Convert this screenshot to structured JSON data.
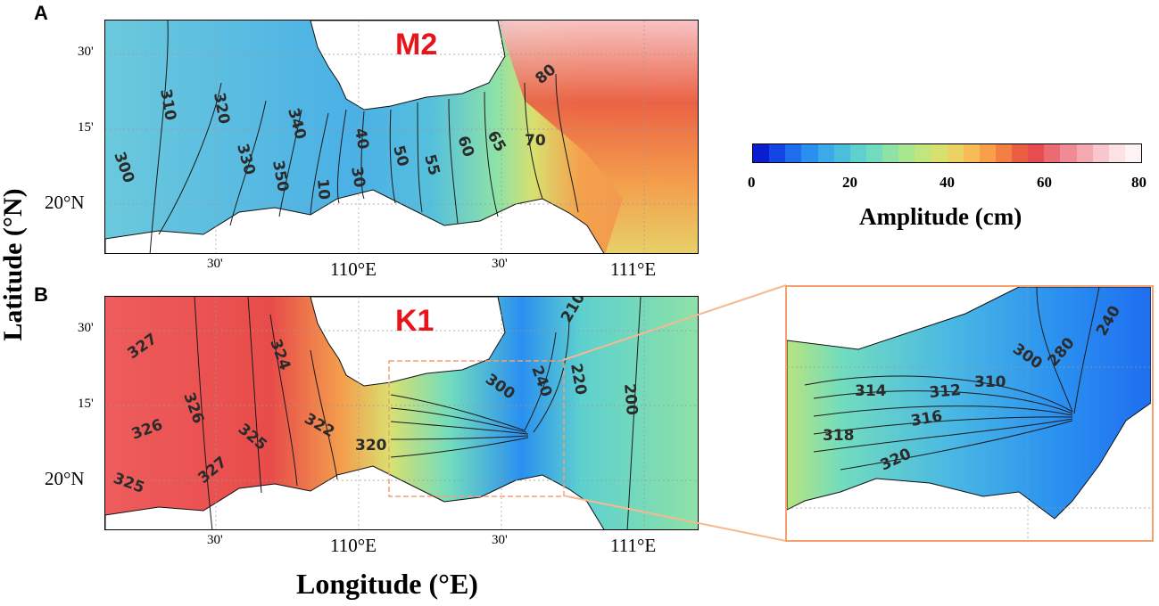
{
  "panels": [
    {
      "letter": "A",
      "constituent": "M2",
      "contour_labels": [
        "310",
        "320",
        "340",
        "300",
        "330",
        "350",
        "10",
        "40",
        "30",
        "50",
        "55",
        "60",
        "65",
        "70",
        "80"
      ]
    },
    {
      "letter": "B",
      "constituent": "K1",
      "contour_labels": [
        "327",
        "324",
        "326",
        "325",
        "322",
        "320",
        "326",
        "327",
        "325",
        "300",
        "240",
        "220",
        "210",
        "200"
      ],
      "inset_contour_labels": [
        "300",
        "240",
        "280",
        "314",
        "312",
        "310",
        "316",
        "318",
        "320"
      ]
    }
  ],
  "axes": {
    "x_title": "Longitude (°E)",
    "y_title": "Latitude (°N)",
    "x_ticks": [
      "30'",
      "110°E",
      "30'",
      "111°E"
    ],
    "y_ticks": [
      "30'",
      "15'",
      "20°N"
    ]
  },
  "colorbar": {
    "title": "Amplitude (cm)",
    "min": 0,
    "max": 80,
    "tick_labels": [
      "0",
      "20",
      "40",
      "60",
      "80"
    ],
    "colors": [
      "#0a1ed0",
      "#1446e6",
      "#1f6ef0",
      "#2a90f0",
      "#3aaae8",
      "#4bbedd",
      "#5dd0cf",
      "#72dcbe",
      "#8ee2a6",
      "#a8e690",
      "#c2e67e",
      "#d8e070",
      "#ecd262",
      "#f7bc55",
      "#fa9e4a",
      "#f47f42",
      "#ea5e44",
      "#e84c50",
      "#ec6a72",
      "#f08a94",
      "#f4a8b0",
      "#f8c6cc",
      "#fce2e4",
      "#fff2f2"
    ],
    "color_stops": {
      "low": "#0a1ed0",
      "mid": "#c2e67e",
      "high": "#fff2f2"
    }
  },
  "chart_data": {
    "type": "heatmap",
    "title": "",
    "xlabel": "Longitude (°E)",
    "ylabel": "Latitude (°N)",
    "x_range": [
      109.2,
      111.4
    ],
    "y_range": [
      19.83,
      20.58
    ],
    "colorbar": {
      "label": "Amplitude (cm)",
      "range": [
        0,
        80
      ]
    },
    "panels": [
      {
        "name": "M2",
        "phase_contour_labels": [
          310,
          320,
          340,
          300,
          330,
          350,
          10,
          40,
          30,
          50,
          55,
          60,
          65,
          70,
          80
        ]
      },
      {
        "name": "K1",
        "phase_contour_labels": [
          327,
          324,
          326,
          325,
          322,
          320,
          326,
          327,
          325,
          300,
          240,
          220,
          210,
          200
        ]
      }
    ]
  }
}
